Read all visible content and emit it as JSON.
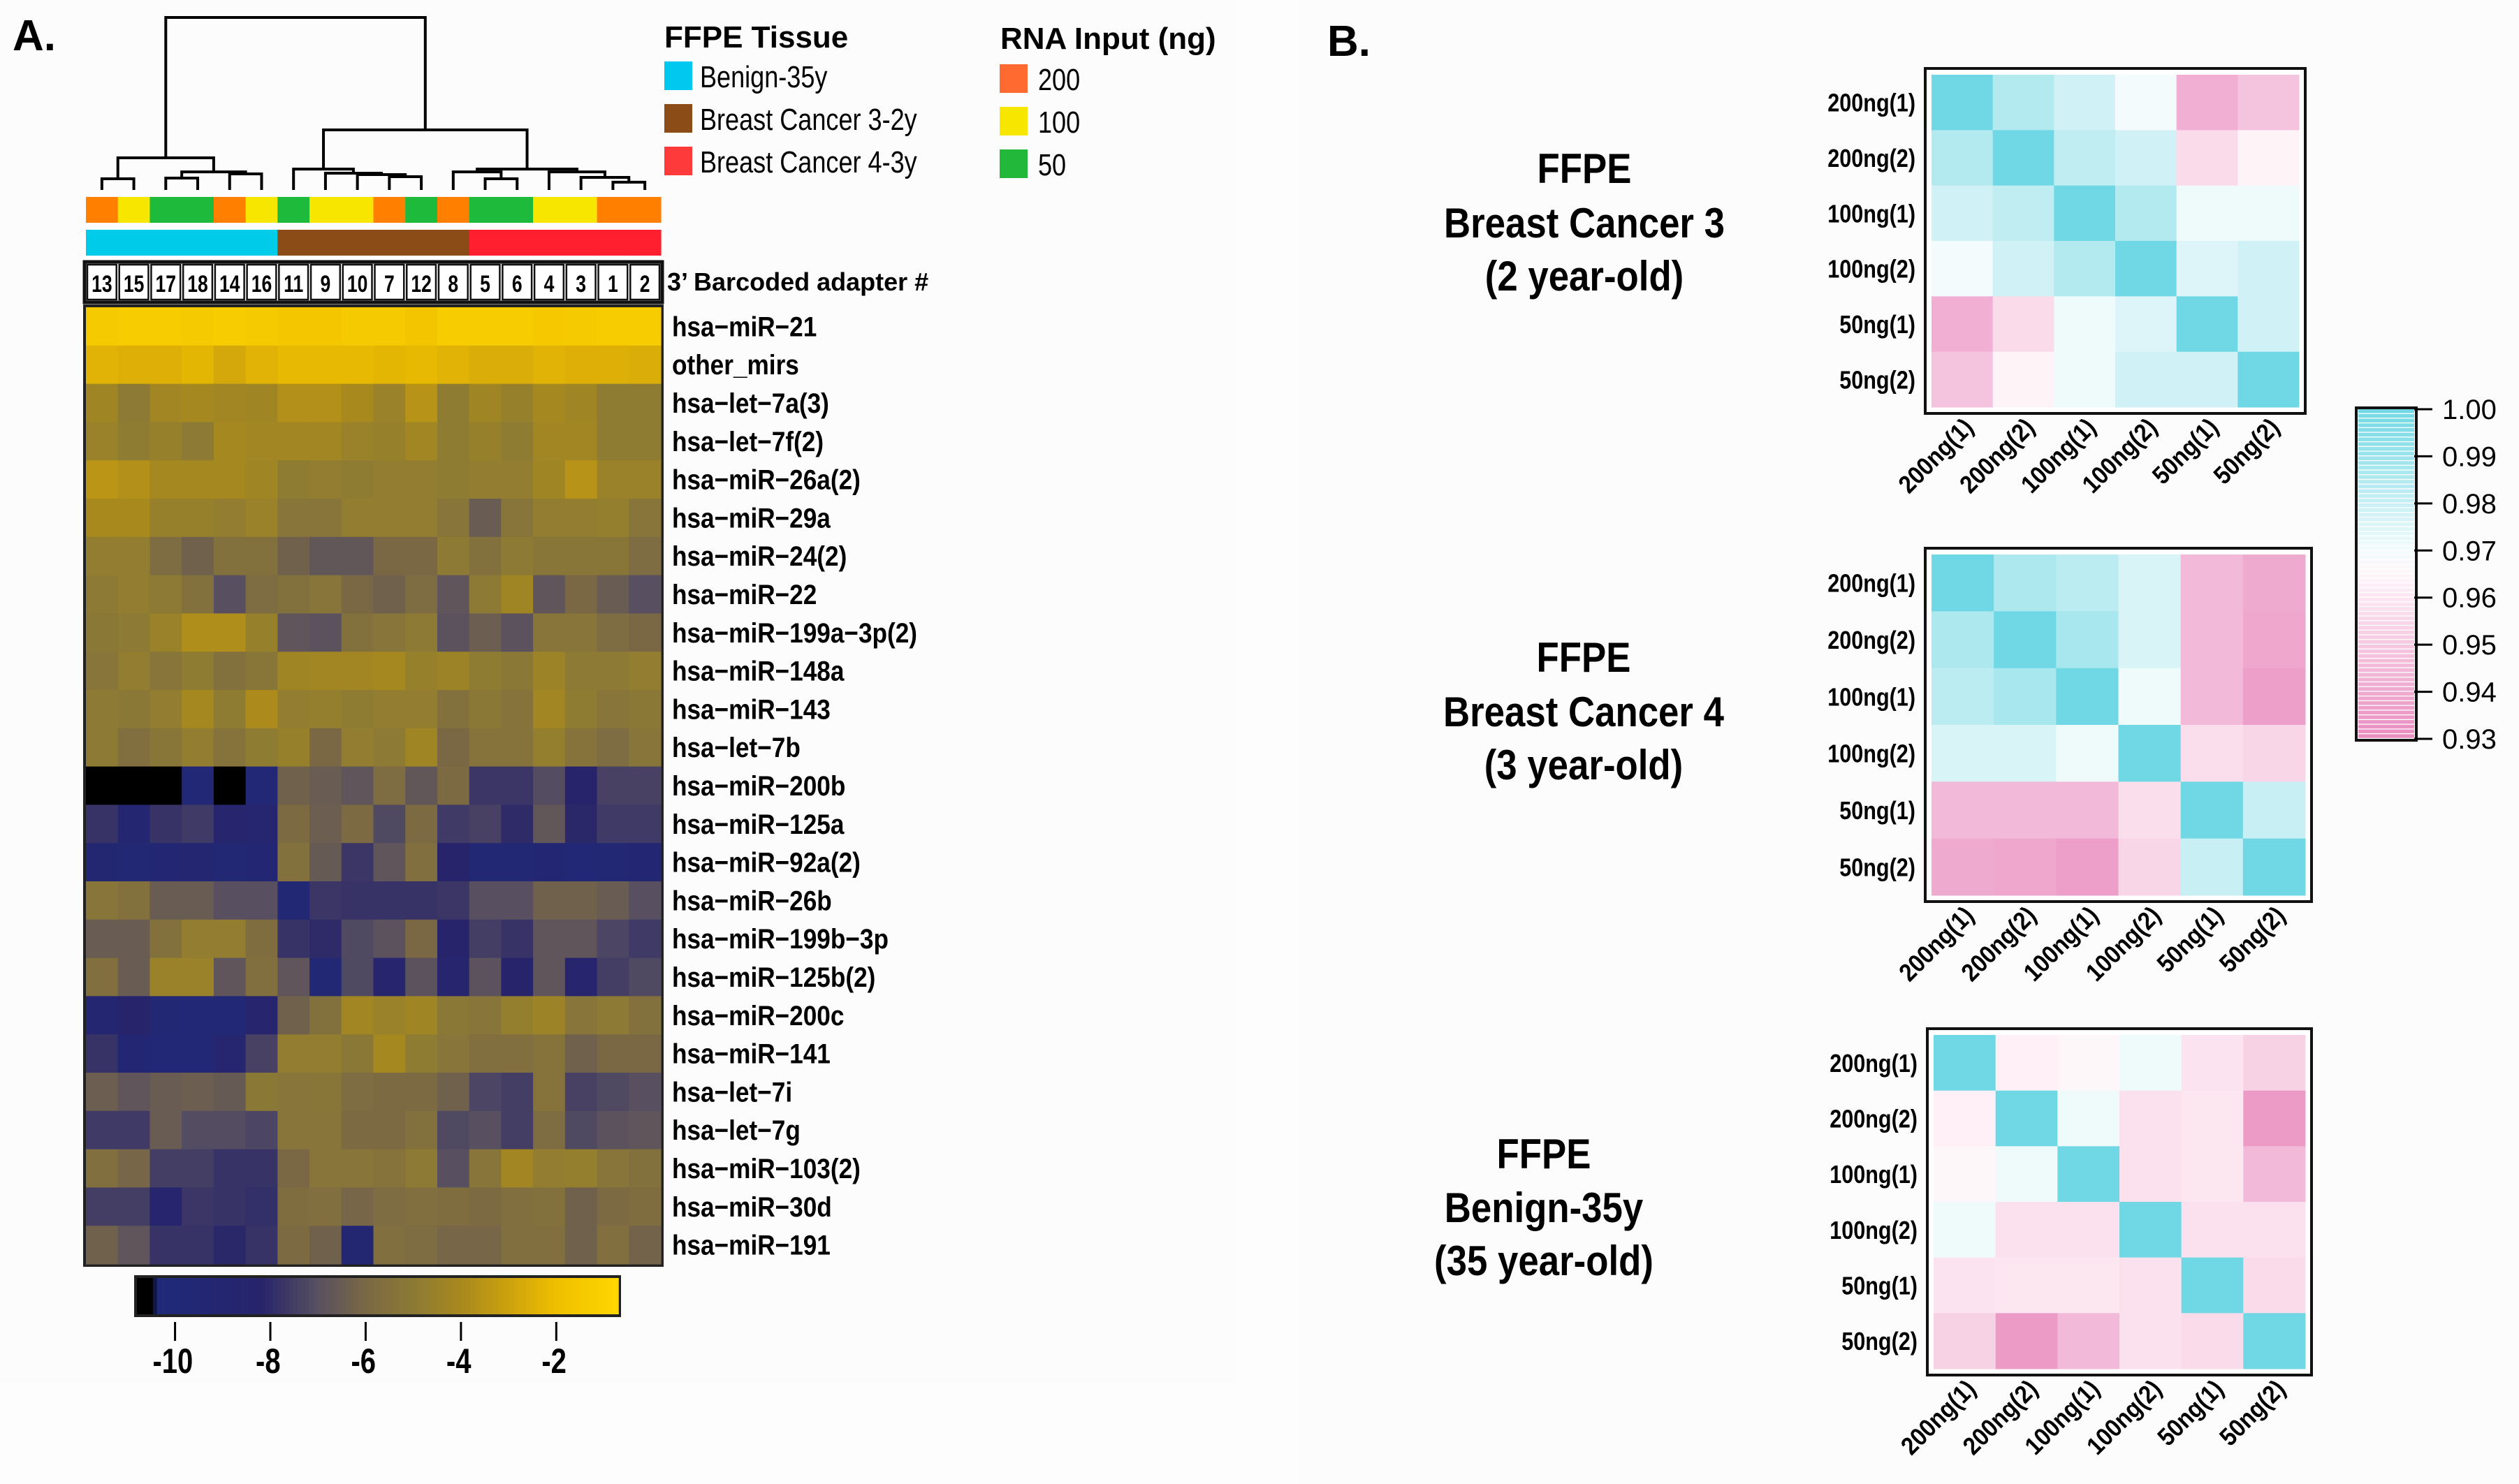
{
  "panels": {
    "a_label": "A.",
    "b_label": "B."
  },
  "legend": {
    "tissue": {
      "title": "FFPE Tissue",
      "items": [
        {
          "label": "Benign-35y",
          "color": "#00c8ee"
        },
        {
          "label": "Breast Cancer 3-2y",
          "color": "#8b4c17"
        },
        {
          "label": "Breast Cancer 4-3y",
          "color": "#ff3a3a"
        }
      ]
    },
    "rna": {
      "title": "RNA Input (ng)",
      "items": [
        {
          "label": "200",
          "color": "#ff6a30"
        },
        {
          "label": "100",
          "color": "#f7e600"
        },
        {
          "label": "50",
          "color": "#22b83a"
        }
      ]
    }
  },
  "barcode_title": "3’ Barcoded adapter #",
  "chart_data": [
    {
      "type": "heatmap",
      "name": "miRNA expression clustered heatmap",
      "title": "",
      "columns": [
        "13",
        "15",
        "17",
        "18",
        "14",
        "16",
        "11",
        "9",
        "10",
        "7",
        "12",
        "8",
        "5",
        "6",
        "4",
        "3",
        "1",
        "2"
      ],
      "column_tissue": [
        "Benign-35y",
        "Benign-35y",
        "Benign-35y",
        "Benign-35y",
        "Benign-35y",
        "Benign-35y",
        "Breast Cancer 3-2y",
        "Breast Cancer 3-2y",
        "Breast Cancer 3-2y",
        "Breast Cancer 3-2y",
        "Breast Cancer 3-2y",
        "Breast Cancer 3-2y",
        "Breast Cancer 4-3y",
        "Breast Cancer 4-3y",
        "Breast Cancer 4-3y",
        "Breast Cancer 4-3y",
        "Breast Cancer 4-3y",
        "Breast Cancer 4-3y"
      ],
      "column_rna_input": [
        "200",
        "100",
        "50",
        "50",
        "200",
        "100",
        "50",
        "100",
        "100",
        "200",
        "50",
        "200",
        "50",
        "50",
        "100",
        "100",
        "200",
        "200"
      ],
      "dendrogram": {
        "merges": [
          {
            "id": "a",
            "children": [
              "13",
              "15"
            ],
            "height": 0.065
          },
          {
            "id": "b",
            "children": [
              "17",
              "18"
            ],
            "height": 0.069
          },
          {
            "id": "c",
            "children": [
              "14",
              "16"
            ],
            "height": 0.093
          },
          {
            "id": "d",
            "children": [
              "b",
              "c"
            ],
            "height": 0.105
          },
          {
            "id": "e",
            "children": [
              "a",
              "d"
            ],
            "height": 0.186
          },
          {
            "id": "f",
            "children": [
              "7",
              "12"
            ],
            "height": 0.077
          },
          {
            "id": "g",
            "children": [
              "10",
              "f"
            ],
            "height": 0.089
          },
          {
            "id": "h",
            "children": [
              "9",
              "g"
            ],
            "height": 0.097
          },
          {
            "id": "i",
            "children": [
              "11",
              "h"
            ],
            "height": 0.121
          },
          {
            "id": "j",
            "children": [
              "5",
              "6"
            ],
            "height": 0.065
          },
          {
            "id": "k",
            "children": [
              "8",
              "j"
            ],
            "height": 0.105
          },
          {
            "id": "l",
            "children": [
              "1",
              "2"
            ],
            "height": 0.045
          },
          {
            "id": "m",
            "children": [
              "3",
              "l"
            ],
            "height": 0.073
          },
          {
            "id": "n",
            "children": [
              "4",
              "m"
            ],
            "height": 0.105
          },
          {
            "id": "o",
            "children": [
              "k",
              "n"
            ],
            "height": 0.121
          },
          {
            "id": "p",
            "children": [
              "i",
              "o"
            ],
            "height": 0.348
          },
          {
            "id": "root",
            "children": [
              "e",
              "p"
            ],
            "height": 1.0
          }
        ]
      },
      "rows": [
        "hsa−miR−21",
        "other_mirs",
        "hsa−let−7a(3)",
        "hsa−let−7f(2)",
        "hsa−miR−26a(2)",
        "hsa−miR−29a",
        "hsa−miR−24(2)",
        "hsa−miR−22",
        "hsa−miR−199a−3p(2)",
        "hsa−miR−148a",
        "hsa−miR−143",
        "hsa−let−7b",
        "hsa−miR−200b",
        "hsa−miR−125a",
        "hsa−miR−92a(2)",
        "hsa−miR−26b",
        "hsa−miR−199b−3p",
        "hsa−miR−125b(2)",
        "hsa−miR−200c",
        "hsa−miR−141",
        "hsa−let−7i",
        "hsa−let−7g",
        "hsa−miR−103(2)",
        "hsa−miR−30d",
        "hsa−miR−191"
      ],
      "values": [
        [
          -1.4,
          -1.3,
          -1.3,
          -1.4,
          -1.3,
          -1.4,
          -1.6,
          -1.6,
          -1.4,
          -1.4,
          -1.7,
          -1.3,
          -1.3,
          -1.3,
          -1.5,
          -1.4,
          -1.3,
          -1.3
        ],
        [
          -2.4,
          -2.5,
          -2.5,
          -2.3,
          -2.8,
          -2.4,
          -2.2,
          -2.2,
          -2.2,
          -2.3,
          -2.2,
          -2.4,
          -2.6,
          -2.6,
          -2.4,
          -2.5,
          -2.5,
          -2.6
        ],
        [
          -4.3,
          -5.0,
          -4.2,
          -4.1,
          -4.2,
          -4.3,
          -3.7,
          -3.7,
          -4.0,
          -4.5,
          -3.6,
          -4.9,
          -4.3,
          -4.6,
          -4.1,
          -4.3,
          -4.9,
          -4.9
        ],
        [
          -4.5,
          -4.9,
          -4.6,
          -5.0,
          -4.1,
          -4.2,
          -4.2,
          -4.2,
          -4.5,
          -4.6,
          -4.2,
          -4.9,
          -4.6,
          -4.9,
          -4.2,
          -4.2,
          -4.9,
          -4.9
        ],
        [
          -3.5,
          -3.7,
          -4.1,
          -4.1,
          -4.1,
          -4.3,
          -4.9,
          -4.8,
          -4.9,
          -4.8,
          -4.8,
          -4.9,
          -4.8,
          -4.8,
          -4.3,
          -3.6,
          -4.5,
          -4.5
        ],
        [
          -4.0,
          -4.0,
          -4.6,
          -4.6,
          -4.8,
          -4.5,
          -5.3,
          -5.3,
          -4.8,
          -4.8,
          -4.8,
          -5.3,
          -6.5,
          -5.3,
          -4.8,
          -4.8,
          -4.7,
          -5.3
        ],
        [
          -4.8,
          -4.8,
          -5.8,
          -6.3,
          -5.5,
          -5.5,
          -6.3,
          -6.7,
          -6.7,
          -6.0,
          -6.0,
          -5.0,
          -5.5,
          -5.0,
          -5.2,
          -5.2,
          -5.2,
          -5.8
        ],
        [
          -5.0,
          -4.8,
          -5.0,
          -5.5,
          -7.0,
          -5.8,
          -5.5,
          -5.3,
          -6.0,
          -6.3,
          -5.8,
          -6.8,
          -5.0,
          -4.3,
          -6.8,
          -6.0,
          -6.5,
          -7.0
        ],
        [
          -5.1,
          -5.0,
          -4.5,
          -3.8,
          -3.8,
          -4.6,
          -6.8,
          -6.9,
          -5.5,
          -5.3,
          -5.0,
          -6.9,
          -6.4,
          -6.9,
          -5.3,
          -5.3,
          -5.8,
          -6.0
        ],
        [
          -5.3,
          -4.8,
          -5.3,
          -4.9,
          -5.5,
          -5.2,
          -4.3,
          -4.2,
          -4.2,
          -4.1,
          -4.6,
          -4.4,
          -4.9,
          -5.1,
          -4.4,
          -5.0,
          -5.0,
          -4.8
        ],
        [
          -5.0,
          -5.1,
          -4.8,
          -4.1,
          -4.9,
          -3.9,
          -4.8,
          -4.7,
          -4.9,
          -4.8,
          -4.8,
          -5.5,
          -5.1,
          -5.4,
          -4.2,
          -4.9,
          -5.3,
          -5.1
        ],
        [
          -5.0,
          -5.6,
          -5.2,
          -4.8,
          -5.4,
          -4.9,
          -4.6,
          -6.0,
          -4.8,
          -5.0,
          -4.3,
          -6.0,
          -5.4,
          -5.4,
          -4.7,
          -5.4,
          -5.8,
          -5.3
        ],
        [
          -10.8,
          -10.8,
          -10.8,
          -9.6,
          -10.8,
          -9.6,
          -6.3,
          -6.5,
          -6.8,
          -5.8,
          -6.7,
          -5.9,
          -7.7,
          -7.7,
          -7.1,
          -8.3,
          -7.4,
          -7.4
        ],
        [
          -7.8,
          -9.1,
          -7.8,
          -7.6,
          -8.6,
          -8.8,
          -5.9,
          -6.4,
          -5.9,
          -7.2,
          -5.9,
          -7.6,
          -7.4,
          -8.0,
          -6.7,
          -8.1,
          -7.6,
          -7.6
        ],
        [
          -9.2,
          -9.5,
          -9.3,
          -9.1,
          -9.5,
          -9.3,
          -5.5,
          -6.6,
          -7.7,
          -6.8,
          -5.6,
          -8.3,
          -9.5,
          -9.5,
          -9.3,
          -9.6,
          -9.5,
          -9.4
        ],
        [
          -5.3,
          -5.5,
          -6.5,
          -6.5,
          -7.0,
          -7.0,
          -9.5,
          -7.7,
          -7.8,
          -7.8,
          -7.8,
          -7.7,
          -7.0,
          -7.0,
          -6.3,
          -6.3,
          -6.5,
          -7.0
        ],
        [
          -6.5,
          -6.5,
          -5.5,
          -4.8,
          -4.8,
          -5.7,
          -7.8,
          -8.0,
          -7.2,
          -6.9,
          -6.0,
          -8.3,
          -7.5,
          -7.8,
          -6.8,
          -6.8,
          -7.3,
          -7.6
        ],
        [
          -5.6,
          -6.5,
          -4.5,
          -4.5,
          -6.8,
          -5.6,
          -6.8,
          -9.5,
          -7.2,
          -8.6,
          -6.9,
          -8.5,
          -6.9,
          -8.3,
          -6.8,
          -8.5,
          -7.5,
          -7.2
        ],
        [
          -9.1,
          -8.3,
          -9.5,
          -9.6,
          -9.6,
          -8.5,
          -6.3,
          -5.5,
          -4.2,
          -4.5,
          -4.3,
          -5.1,
          -5.3,
          -4.7,
          -4.4,
          -5.3,
          -5.0,
          -5.5
        ],
        [
          -7.8,
          -9.3,
          -9.7,
          -9.6,
          -8.8,
          -7.4,
          -4.8,
          -4.8,
          -5.1,
          -4.1,
          -4.9,
          -5.3,
          -5.6,
          -5.6,
          -5.4,
          -6.3,
          -6.0,
          -6.0
        ],
        [
          -6.4,
          -6.8,
          -6.5,
          -6.4,
          -6.6,
          -5.1,
          -5.3,
          -5.2,
          -5.8,
          -5.9,
          -5.9,
          -6.3,
          -7.3,
          -7.5,
          -5.4,
          -7.4,
          -7.2,
          -7.0
        ],
        [
          -7.6,
          -7.6,
          -6.5,
          -7.1,
          -7.1,
          -7.3,
          -5.3,
          -5.3,
          -5.9,
          -5.9,
          -5.5,
          -7.2,
          -7.0,
          -7.5,
          -5.8,
          -7.2,
          -6.9,
          -6.8
        ],
        [
          -5.6,
          -6.1,
          -7.5,
          -7.5,
          -7.8,
          -7.8,
          -6.0,
          -5.3,
          -5.3,
          -5.4,
          -5.0,
          -7.0,
          -5.3,
          -4.2,
          -4.8,
          -4.7,
          -5.3,
          -5.5
        ],
        [
          -7.5,
          -7.5,
          -8.5,
          -7.7,
          -7.8,
          -7.9,
          -5.7,
          -5.6,
          -6.1,
          -5.8,
          -5.6,
          -5.7,
          -5.9,
          -5.6,
          -5.5,
          -6.3,
          -5.9,
          -5.7
        ],
        [
          -6.3,
          -6.8,
          -7.8,
          -7.8,
          -8.1,
          -7.8,
          -5.9,
          -6.3,
          -9.2,
          -5.6,
          -5.8,
          -6.1,
          -6.1,
          -5.6,
          -5.6,
          -6.3,
          -5.6,
          -6.2
        ]
      ],
      "colorbar": {
        "range": [
          -10.8,
          -0.7
        ],
        "ticks": [
          -10,
          -8,
          -6,
          -4,
          -2
        ],
        "tick_labels": [
          "-10",
          "-8",
          "-6",
          "-4",
          "-2"
        ],
        "colors": [
          {
            "v": -10.8,
            "c": "#000000"
          },
          {
            "v": -10.45,
            "c": "#000000"
          },
          {
            "v": -10.4,
            "c": "#1f2a7a"
          },
          {
            "v": -8.2,
            "c": "#27246b"
          },
          {
            "v": -7.0,
            "c": "#585060"
          },
          {
            "v": -6.0,
            "c": "#7a6845"
          },
          {
            "v": -5.0,
            "c": "#8c7a35"
          },
          {
            "v": -4.0,
            "c": "#a8891e"
          },
          {
            "v": -3.0,
            "c": "#cda10e"
          },
          {
            "v": -2.0,
            "c": "#eebf00"
          },
          {
            "v": -0.7,
            "c": "#ffd700"
          }
        ]
      }
    },
    {
      "type": "heatmap",
      "name": "correlation-bc3",
      "title_lines": [
        "FFPE",
        "Breast Cancer 3",
        "(2 year-old)"
      ],
      "labels": [
        "200ng(1)",
        "200ng(2)",
        "100ng(1)",
        "100ng(2)",
        "50ng(1)",
        "50ng(2)"
      ],
      "values": [
        [
          1.0,
          0.985,
          0.978,
          0.97,
          0.942,
          0.948
        ],
        [
          0.985,
          1.0,
          0.982,
          0.978,
          0.956,
          0.964
        ],
        [
          0.978,
          0.982,
          1.0,
          0.985,
          0.971,
          0.971
        ],
        [
          0.97,
          0.978,
          0.985,
          1.0,
          0.975,
          0.978
        ],
        [
          0.942,
          0.956,
          0.971,
          0.975,
          1.0,
          0.978
        ],
        [
          0.948,
          0.964,
          0.971,
          0.978,
          0.978,
          1.0
        ]
      ]
    },
    {
      "type": "heatmap",
      "name": "correlation-bc4",
      "title_lines": [
        "FFPE",
        "Breast Cancer 4",
        "(3 year-old)"
      ],
      "labels": [
        "200ng(1)",
        "200ng(2)",
        "100ng(1)",
        "100ng(2)",
        "50ng(1)",
        "50ng(2)"
      ],
      "values": [
        [
          1.0,
          0.986,
          0.983,
          0.976,
          0.945,
          0.94
        ],
        [
          0.986,
          1.0,
          0.987,
          0.976,
          0.945,
          0.939
        ],
        [
          0.983,
          0.987,
          1.0,
          0.971,
          0.945,
          0.936
        ],
        [
          0.976,
          0.976,
          0.971,
          1.0,
          0.957,
          0.954
        ],
        [
          0.945,
          0.945,
          0.945,
          0.957,
          1.0,
          0.98
        ],
        [
          0.94,
          0.939,
          0.936,
          0.954,
          0.98,
          1.0
        ]
      ]
    },
    {
      "type": "heatmap",
      "name": "correlation-benign",
      "title_lines": [
        "FFPE",
        "Benign-35y",
        "(35 year-old)"
      ],
      "labels": [
        "200ng(1)",
        "200ng(2)",
        "100ng(1)",
        "100ng(2)",
        "50ng(1)",
        "50ng(2)"
      ],
      "values": [
        [
          1.0,
          0.963,
          0.966,
          0.971,
          0.959,
          0.953
        ],
        [
          0.963,
          1.0,
          0.971,
          0.958,
          0.96,
          0.935
        ],
        [
          0.966,
          0.971,
          1.0,
          0.958,
          0.96,
          0.945
        ],
        [
          0.971,
          0.958,
          0.958,
          1.0,
          0.958,
          0.958
        ],
        [
          0.959,
          0.96,
          0.96,
          0.958,
          1.0,
          0.956
        ],
        [
          0.953,
          0.935,
          0.945,
          0.958,
          0.956,
          1.0
        ]
      ]
    },
    {
      "type": "colorbar",
      "name": "correlation-colorbar",
      "range": [
        0.93,
        1.0
      ],
      "ticks": [
        1.0,
        0.99,
        0.98,
        0.97,
        0.96,
        0.95,
        0.94,
        0.93
      ],
      "tick_labels": [
        "1.00",
        "0.99",
        "0.98",
        "0.97",
        "0.96",
        "0.95",
        "0.94",
        "0.93"
      ],
      "colors": [
        {
          "v": 0.93,
          "c": "#e98cbf"
        },
        {
          "v": 0.965,
          "c": "#fff6f9"
        },
        {
          "v": 0.97,
          "c": "#f3fbfc"
        },
        {
          "v": 1.0,
          "c": "#70d8e4"
        }
      ],
      "steps": 70
    }
  ]
}
